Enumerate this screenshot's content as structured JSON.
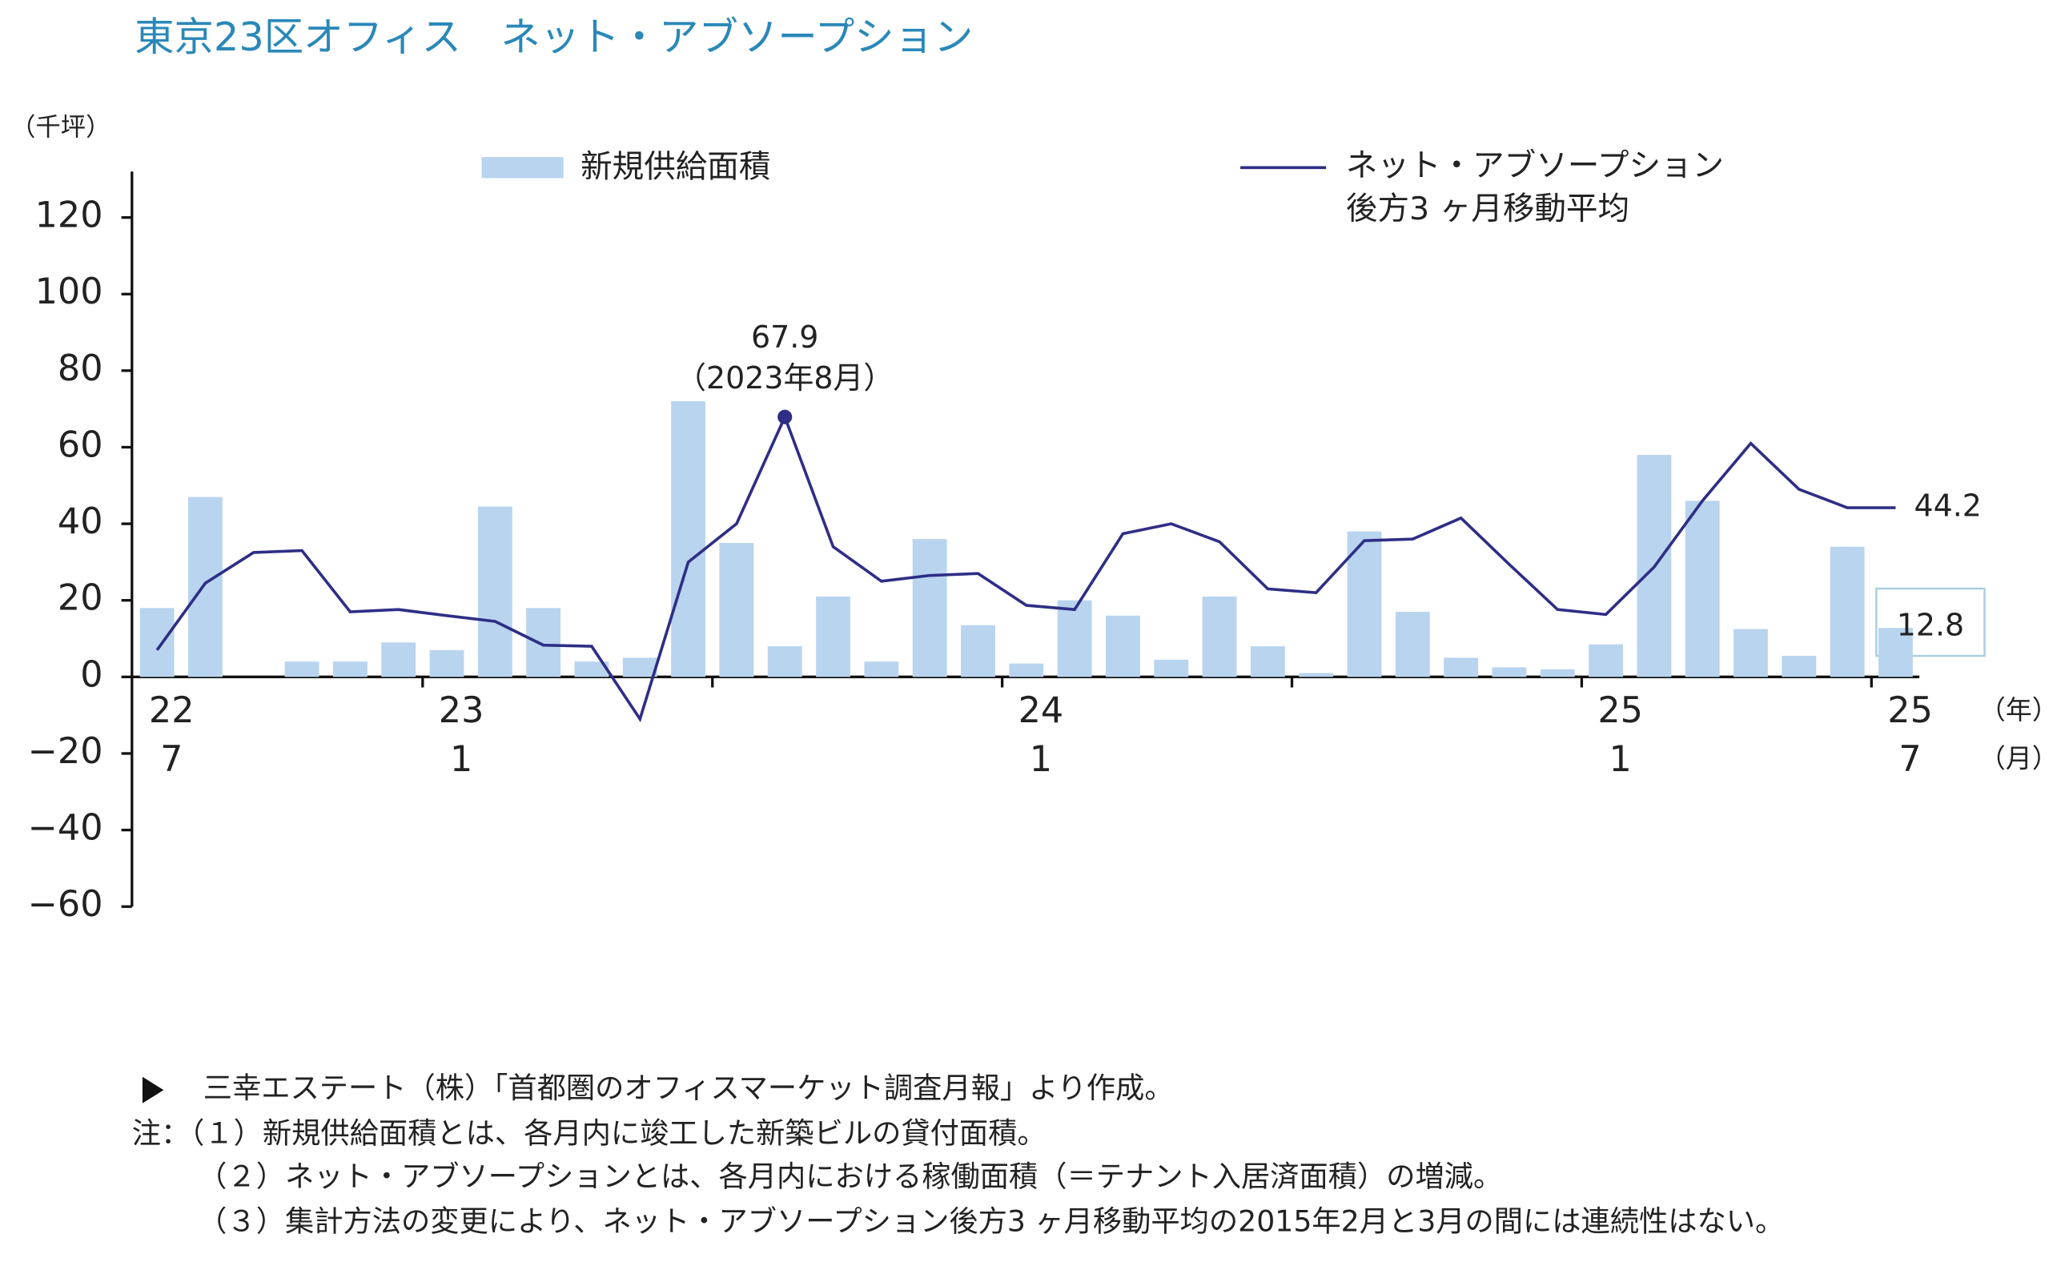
{
  "chart_data": {
    "type": "bar-line",
    "title": "東京23区オフィス　ネット・アブソープション",
    "y_unit": "（千坪）",
    "year_unit": "（年）",
    "month_unit": "（月）",
    "categories": [
      "7",
      null,
      null,
      null,
      null,
      null,
      "1",
      null,
      null,
      null,
      null,
      null,
      null,
      null,
      null,
      null,
      null,
      null,
      "1",
      null,
      null,
      null,
      null,
      null,
      null,
      null,
      null,
      null,
      null,
      null,
      "1",
      null,
      null,
      null,
      null,
      null,
      "7"
    ],
    "category_years": [
      "22",
      null,
      null,
      null,
      null,
      null,
      "23",
      null,
      null,
      null,
      null,
      null,
      null,
      null,
      null,
      null,
      null,
      null,
      "24",
      null,
      null,
      null,
      null,
      null,
      null,
      null,
      null,
      null,
      null,
      null,
      "25",
      null,
      null,
      null,
      null,
      null,
      "25"
    ],
    "series": [
      {
        "name": "新規供給面積",
        "type": "bar",
        "color": "#b9d4ef",
        "values": [
          18,
          47,
          0,
          4,
          4,
          9,
          7,
          44.5,
          18,
          4,
          5,
          72,
          35,
          8,
          21,
          4,
          36,
          13.5,
          3.5,
          20,
          16,
          4.5,
          21,
          8,
          1,
          38,
          17,
          5,
          2.5,
          2,
          8.5,
          58,
          46,
          12.5,
          5.5,
          34,
          12.8
        ]
      },
      {
        "name": [
          "ネット・アブソープション",
          "後方3 ヶ月移動平均"
        ],
        "type": "line",
        "color": "#2e2e86",
        "values": [
          7,
          24.5,
          32.5,
          33,
          17,
          17.6,
          16,
          14.5,
          8.3,
          8,
          -11,
          30,
          40,
          67.9,
          34,
          25,
          26.5,
          27,
          18.7,
          17.6,
          37.4,
          40,
          35.3,
          23,
          22,
          35.6,
          36,
          41.5,
          29.4,
          17.6,
          16.3,
          28.7,
          46,
          61,
          49,
          44.2,
          44.2
        ]
      }
    ],
    "peak_annotation": "（2023年8月）",
    "ylim": [
      -60,
      132
    ],
    "yticks": [
      {
        "value": -60,
        "label": "−60"
      },
      {
        "value": -40,
        "label": "−40"
      },
      {
        "value": -20,
        "label": "−20"
      },
      0,
      20,
      40,
      60,
      80,
      100,
      120
    ],
    "source": "三幸エステート（株）「首都圏のオフィスマーケット調査月報」より作成。",
    "notes": [
      "注：（１）新規供給面積とは、各月内に竣工した新築ビルの貸付面積。",
      "（２）ネット・アブソープションとは、各月内における稼働面積（＝テナント入居済面積）の増減。",
      "（３）集計方法の変更により、ネット・アブソープション後方3 ヶ月移動平均の2015年2月と3月の間には連続性はない。"
    ]
  }
}
